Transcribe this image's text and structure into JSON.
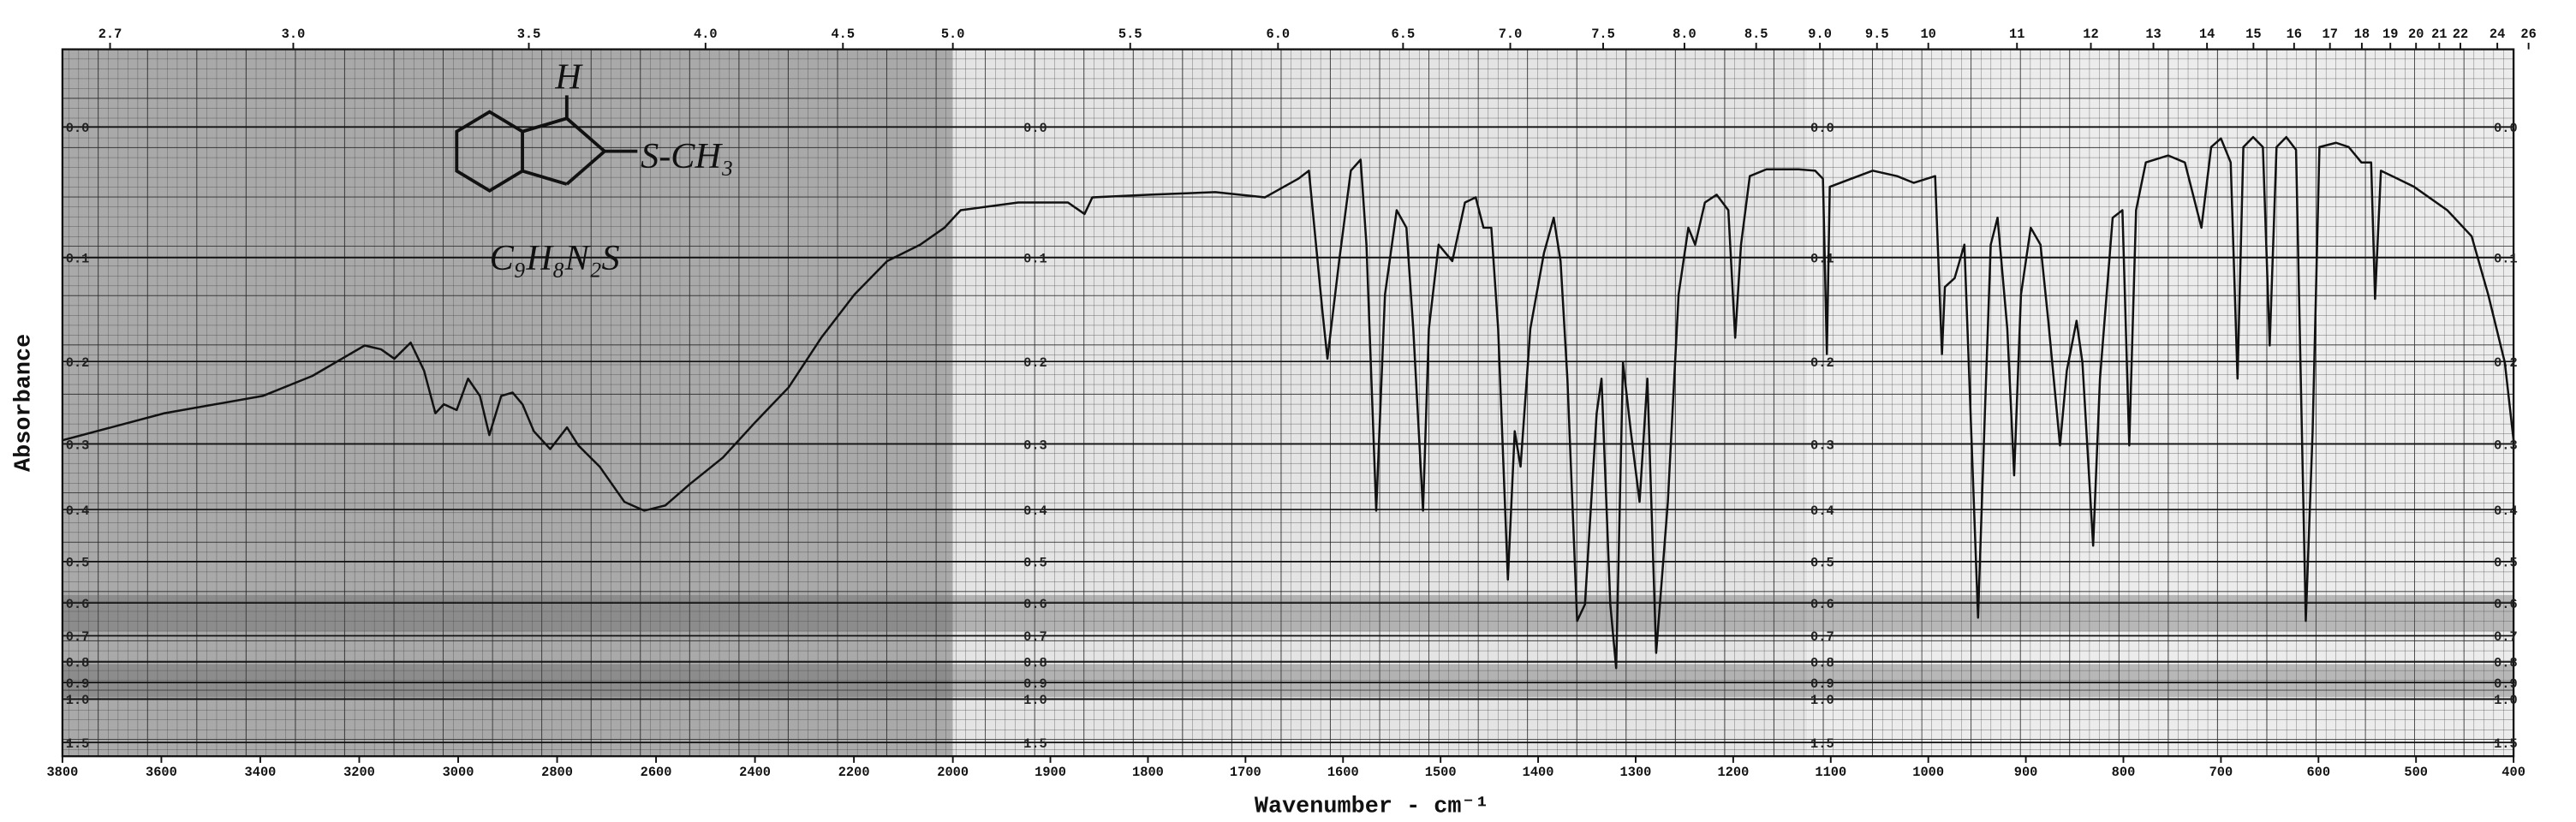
{
  "chart_data": {
    "type": "line",
    "xlabel": "Wavenumber - cm⁻¹",
    "ylabel": "Absorbance",
    "annotations": [
      "H",
      "S-CH₃",
      "C₉H₈N₂S"
    ],
    "color": "#111111",
    "xlim": [
      3800,
      400
    ],
    "xscale_break": 2000,
    "xticks": [
      3800,
      3600,
      3400,
      3200,
      3000,
      2800,
      2600,
      2400,
      2200,
      2000,
      1900,
      1800,
      1700,
      1600,
      1500,
      1400,
      1300,
      1200,
      1100,
      1000,
      900,
      800,
      700,
      600,
      500,
      400
    ],
    "x2ticks": [
      2.7,
      {
        "value": 3,
        "label": "3.0"
      },
      3.5,
      {
        "value": 4,
        "label": "4.0"
      },
      4.5,
      {
        "value": 5,
        "label": "5.0"
      },
      5.5,
      {
        "value": 6,
        "label": "6.0"
      },
      6.5,
      {
        "value": 7,
        "label": "7.0"
      },
      7.5,
      {
        "value": 8,
        "label": "8.0"
      },
      8.5,
      {
        "value": 9,
        "label": "9.0"
      },
      9.5,
      10,
      11,
      12,
      13,
      14,
      15,
      16,
      17,
      18,
      19,
      20,
      21,
      22,
      24,
      26
    ],
    "yscale": "transmittance",
    "ylim": [
      -0.05,
      2
    ],
    "yticks": [
      {
        "value": 0,
        "label": "0.0"
      },
      0.1,
      0.2,
      0.3,
      0.4,
      0.5,
      0.6,
      0.7,
      0.8,
      0.9,
      {
        "value": 1,
        "label": "1.0"
      },
      1.5
    ],
    "grid": true,
    "x": [
      3800,
      3594,
      3395,
      3295,
      3189,
      3156,
      3129,
      3096,
      3069,
      3046,
      3029,
      3003,
      2980,
      2956,
      2937,
      2913,
      2890,
      2870,
      2847,
      2814,
      2780,
      2757,
      2714,
      2664,
      2624,
      2581,
      2531,
      2465,
      2399,
      2332,
      2266,
      2199,
      2133,
      2066,
      2017,
      1992,
      1933,
      1882,
      1865,
      1857,
      1798,
      1731,
      1680,
      1646,
      1635,
      1621,
      1616,
      1604,
      1592,
      1582,
      1576,
      1566,
      1557,
      1545,
      1535,
      1528,
      1518,
      1512,
      1502,
      1488,
      1475,
      1464,
      1456,
      1448,
      1441,
      1431,
      1424,
      1418,
      1408,
      1394,
      1384,
      1377,
      1370,
      1360,
      1352,
      1340,
      1335,
      1326,
      1320,
      1313,
      1305,
      1296,
      1288,
      1279,
      1267,
      1256,
      1246,
      1239,
      1229,
      1217,
      1205,
      1198,
      1192,
      1183,
      1166,
      1133,
      1116,
      1108,
      1104,
      1101,
      1057,
      1032,
      1015,
      993,
      986,
      983,
      973,
      963,
      949,
      942,
      936,
      929,
      919,
      912,
      905,
      895,
      885,
      877,
      865,
      858,
      848,
      842,
      831,
      824,
      811,
      801,
      794,
      787,
      777,
      754,
      737,
      720,
      710,
      700,
      690,
      683,
      677,
      667,
      657,
      650,
      643,
      633,
      623,
      613,
      606,
      599,
      582,
      569,
      556,
      546,
      542,
      536,
      502,
      468,
      443,
      426,
      409,
      400
    ],
    "values": [
      0.295,
      0.26,
      0.239,
      0.216,
      0.183,
      0.187,
      0.197,
      0.18,
      0.21,
      0.26,
      0.249,
      0.256,
      0.219,
      0.239,
      0.288,
      0.239,
      0.235,
      0.249,
      0.283,
      0.307,
      0.278,
      0.302,
      0.332,
      0.387,
      0.402,
      0.393,
      0.358,
      0.319,
      0.271,
      0.229,
      0.175,
      0.133,
      0.103,
      0.089,
      0.075,
      0.061,
      0.055,
      0.055,
      0.064,
      0.051,
      0.049,
      0.047,
      0.051,
      0.037,
      0.031,
      0.15,
      0.197,
      0.103,
      0.031,
      0.023,
      0.089,
      0.402,
      0.133,
      0.061,
      0.075,
      0.166,
      0.402,
      0.166,
      0.089,
      0.103,
      0.055,
      0.051,
      0.075,
      0.075,
      0.166,
      0.541,
      0.283,
      0.332,
      0.166,
      0.096,
      0.067,
      0.103,
      0.219,
      0.652,
      0.604,
      0.26,
      0.219,
      0.604,
      0.828,
      0.201,
      0.283,
      0.387,
      0.219,
      0.763,
      0.387,
      0.133,
      0.075,
      0.089,
      0.055,
      0.049,
      0.061,
      0.175,
      0.089,
      0.035,
      0.03,
      0.03,
      0.031,
      0.037,
      0.192,
      0.043,
      0.031,
      0.035,
      0.04,
      0.035,
      0.192,
      0.126,
      0.118,
      0.089,
      0.642,
      0.26,
      0.089,
      0.067,
      0.166,
      0.345,
      0.133,
      0.075,
      0.089,
      0.158,
      0.302,
      0.21,
      0.158,
      0.201,
      0.467,
      0.219,
      0.067,
      0.061,
      0.302,
      0.061,
      0.025,
      0.02,
      0.025,
      0.075,
      0.014,
      0.008,
      0.025,
      0.219,
      0.014,
      0.007,
      0.014,
      0.183,
      0.014,
      0.007,
      0.016,
      0.652,
      0.283,
      0.014,
      0.011,
      0.014,
      0.025,
      0.025,
      0.137,
      0.031,
      0.043,
      0.061,
      0.082,
      0.133,
      0.201,
      0.295
    ]
  }
}
